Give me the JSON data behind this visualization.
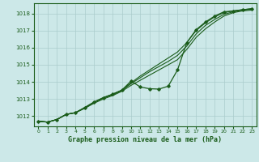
{
  "title": "Graphe pression niveau de la mer (hPa)",
  "bg_color": "#cce8e8",
  "plot_bg_color": "#cce8e8",
  "grid_color": "#aacccc",
  "line_color": "#1a5c1a",
  "xlim": [
    -0.5,
    23.5
  ],
  "ylim": [
    1011.4,
    1018.6
  ],
  "yticks": [
    1012,
    1013,
    1014,
    1015,
    1016,
    1017,
    1018
  ],
  "xticks": [
    0,
    1,
    2,
    3,
    4,
    5,
    6,
    7,
    8,
    9,
    10,
    11,
    12,
    13,
    14,
    15,
    16,
    17,
    18,
    19,
    20,
    21,
    22,
    23
  ],
  "line1_x": [
    0,
    1,
    2,
    3,
    4,
    5,
    6,
    7,
    8,
    9,
    10,
    11,
    12,
    13,
    14,
    15,
    16,
    17,
    18,
    19,
    20,
    21,
    22,
    23
  ],
  "line1_y": [
    1011.7,
    1011.65,
    1011.8,
    1012.1,
    1012.2,
    1012.45,
    1012.75,
    1013.0,
    1013.2,
    1013.45,
    1013.8,
    1014.1,
    1014.4,
    1014.7,
    1015.0,
    1015.3,
    1015.9,
    1016.6,
    1017.1,
    1017.5,
    1017.85,
    1018.05,
    1018.15,
    1018.2
  ],
  "line2_x": [
    0,
    1,
    2,
    3,
    4,
    5,
    6,
    7,
    8,
    9,
    10,
    11,
    12,
    13,
    14,
    15,
    16,
    17,
    18,
    19,
    20,
    21,
    22,
    23
  ],
  "line2_y": [
    1011.7,
    1011.65,
    1011.8,
    1012.1,
    1012.2,
    1012.48,
    1012.8,
    1013.05,
    1013.25,
    1013.5,
    1013.9,
    1014.25,
    1014.6,
    1014.9,
    1015.2,
    1015.55,
    1016.1,
    1016.8,
    1017.3,
    1017.65,
    1017.95,
    1018.1,
    1018.2,
    1018.25
  ],
  "line3_x": [
    0,
    1,
    2,
    3,
    4,
    5,
    6,
    7,
    8,
    9,
    10,
    11,
    12,
    13,
    14,
    15,
    16,
    17,
    18,
    19,
    20,
    21,
    22,
    23
  ],
  "line3_y": [
    1011.7,
    1011.65,
    1011.8,
    1012.1,
    1012.2,
    1012.5,
    1012.82,
    1013.08,
    1013.28,
    1013.52,
    1013.95,
    1014.35,
    1014.7,
    1015.05,
    1015.4,
    1015.75,
    1016.3,
    1017.0,
    1017.45,
    1017.8,
    1018.05,
    1018.15,
    1018.22,
    1018.28
  ],
  "main_x": [
    0,
    1,
    2,
    3,
    4,
    5,
    6,
    7,
    8,
    9,
    10,
    11,
    12,
    13,
    14,
    15,
    16,
    17,
    18,
    19,
    20,
    21,
    22,
    23
  ],
  "main_y": [
    1011.7,
    1011.65,
    1011.8,
    1012.1,
    1012.2,
    1012.5,
    1012.82,
    1013.08,
    1013.28,
    1013.52,
    1014.05,
    1013.7,
    1013.6,
    1013.58,
    1013.75,
    1014.7,
    1016.3,
    1017.05,
    1017.5,
    1017.85,
    1018.1,
    1018.15,
    1018.22,
    1018.28
  ]
}
